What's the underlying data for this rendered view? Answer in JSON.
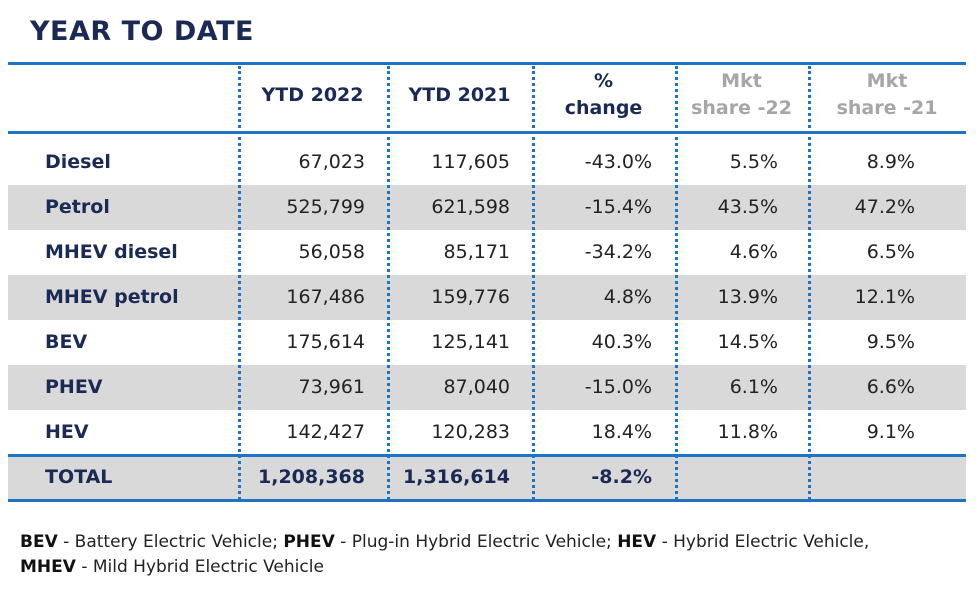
{
  "title": "YEAR TO DATE",
  "table": {
    "header": [
      [
        "YTD 2022"
      ],
      [
        "YTD 2021"
      ],
      [
        "%",
        "change"
      ],
      [
        "Mkt",
        "share -22"
      ],
      [
        "Mkt",
        "share -21"
      ]
    ],
    "rows": [
      [
        "Diesel",
        "67,023",
        "117,605",
        "-43.0%",
        "5.5%",
        "8.9%"
      ],
      [
        "Petrol",
        "525,799",
        "621,598",
        "-15.4%",
        "43.5%",
        "47.2%"
      ],
      [
        "MHEV diesel",
        "56,058",
        "85,171",
        "-34.2%",
        "4.6%",
        "6.5%"
      ],
      [
        "MHEV petrol",
        "167,486",
        "159,776",
        "4.8%",
        "13.9%",
        "12.1%"
      ],
      [
        "BEV",
        "175,614",
        "125,141",
        "40.3%",
        "14.5%",
        "9.5%"
      ],
      [
        "PHEV",
        "73,961",
        "87,040",
        "-15.0%",
        "6.1%",
        "6.6%"
      ],
      [
        "HEV",
        "142,427",
        "120,283",
        "18.4%",
        "11.8%",
        "9.1%"
      ]
    ],
    "total": [
      "TOTAL",
      "1,208,368",
      "1,316,614",
      "-8.2%"
    ]
  },
  "footnote": [
    [
      {
        "abbr": "BEV",
        "text": " - Battery Electric Vehicle; "
      },
      {
        "abbr": "PHEV",
        "text": " - Plug-in Hybrid Electric Vehicle; "
      },
      {
        "abbr": "HEV",
        "text": " - Hybrid Electric Vehicle,"
      }
    ],
    [
      {
        "abbr": "MHEV",
        "text": " - Mild Hybrid Electric Vehicle"
      }
    ]
  ]
}
